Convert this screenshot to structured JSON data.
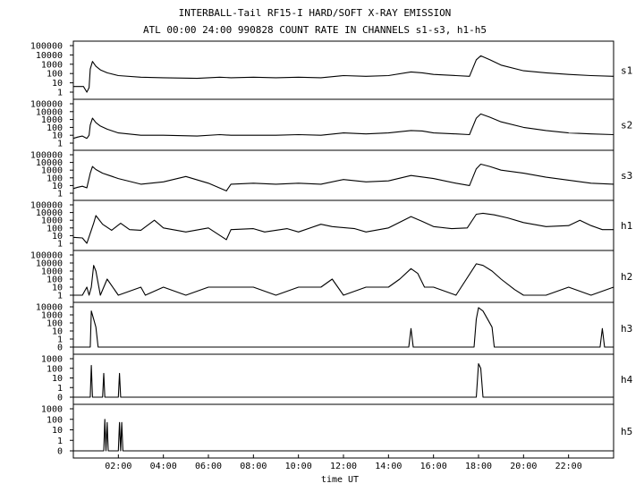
{
  "chart_data": {
    "type": "line",
    "title": "INTERBALL-Tail RF15-I HARD/SOFT X-RAY EMISSION",
    "subtitle": "ATL 00:00 24:00 990828  COUNT RATE IN CHANNELS s1-s3, h1-h5",
    "xlabel": "time UT",
    "xlim": [
      0,
      24
    ],
    "x_ticks": [
      "02:00",
      "04:00",
      "06:00",
      "08:00",
      "10:00",
      "12:00",
      "14:00",
      "16:00",
      "18:00",
      "20:00",
      "22:00"
    ],
    "x_tick_hours": [
      2,
      4,
      6,
      8,
      10,
      12,
      14,
      16,
      18,
      20,
      22
    ],
    "y_scale": "log",
    "grid": false,
    "panels": [
      {
        "name": "s1",
        "y_ticks": [
          "100000",
          "10000",
          "1000",
          "100",
          "10",
          "1"
        ],
        "x": [
          0,
          0.2,
          0.45,
          0.6,
          0.7,
          0.75,
          0.85,
          1.0,
          1.2,
          1.5,
          2.0,
          3.0,
          4.0,
          5.5,
          6.5,
          7.0,
          8.0,
          9.0,
          10.0,
          11.0,
          12.0,
          13.0,
          14.0,
          15.0,
          15.5,
          16.0,
          17.0,
          17.6,
          17.9,
          18.1,
          18.5,
          19.0,
          20.0,
          21.0,
          22.0,
          23.0,
          24.0
        ],
        "y": [
          4,
          4,
          4,
          1,
          3,
          300,
          2000,
          600,
          250,
          120,
          60,
          40,
          35,
          30,
          40,
          35,
          40,
          35,
          40,
          35,
          60,
          50,
          60,
          150,
          120,
          80,
          60,
          50,
          3000,
          8000,
          3000,
          800,
          200,
          120,
          80,
          60,
          50
        ]
      },
      {
        "name": "s2",
        "y_ticks": [
          "100000",
          "10000",
          "1000",
          "100",
          "10",
          "1"
        ],
        "x": [
          0,
          0.2,
          0.4,
          0.6,
          0.7,
          0.75,
          0.85,
          1.0,
          1.2,
          1.5,
          2.0,
          3.0,
          4.0,
          5.5,
          6.5,
          7.0,
          8.0,
          9.0,
          10.0,
          11.0,
          12.0,
          13.0,
          14.0,
          15.0,
          15.5,
          16.0,
          17.0,
          17.6,
          17.9,
          18.1,
          18.5,
          19.0,
          20.0,
          21.0,
          22.0,
          23.0,
          24.0
        ],
        "y": [
          4,
          6,
          8,
          4,
          10,
          200,
          1500,
          400,
          150,
          60,
          20,
          10,
          10,
          8,
          12,
          10,
          10,
          10,
          12,
          10,
          20,
          15,
          20,
          40,
          35,
          20,
          15,
          12,
          1500,
          5000,
          2000,
          500,
          100,
          40,
          20,
          15,
          12
        ]
      },
      {
        "name": "s3",
        "y_ticks": [
          "100000",
          "10000",
          "1000",
          "100",
          "10",
          "1"
        ],
        "x": [
          0,
          0.2,
          0.4,
          0.6,
          0.75,
          0.85,
          1.0,
          1.3,
          1.6,
          2.0,
          3.0,
          4.0,
          5.0,
          6.0,
          6.8,
          7.0,
          8.0,
          9.0,
          10.0,
          11.0,
          12.0,
          13.0,
          14.0,
          15.0,
          16.0,
          17.0,
          17.6,
          17.9,
          18.1,
          18.5,
          19.0,
          20.0,
          21.0,
          22.0,
          23.0,
          24.0
        ],
        "y": [
          4,
          6,
          8,
          5,
          400,
          3000,
          1200,
          400,
          200,
          80,
          15,
          30,
          150,
          20,
          2,
          15,
          20,
          15,
          20,
          15,
          60,
          30,
          40,
          200,
          80,
          20,
          10,
          1500,
          6000,
          3000,
          1000,
          400,
          120,
          50,
          20,
          15
        ]
      },
      {
        "name": "h1",
        "y_ticks": [
          "100000",
          "10000",
          "1000",
          "100",
          "10",
          "1"
        ],
        "x": [
          0,
          0.4,
          0.6,
          0.75,
          0.9,
          1.0,
          1.3,
          1.7,
          2.1,
          2.5,
          3.0,
          3.6,
          4.0,
          5.0,
          6.0,
          6.8,
          7.0,
          8.0,
          8.5,
          9.5,
          10.0,
          11.0,
          11.5,
          12.5,
          13.0,
          14.0,
          15.0,
          15.5,
          16.0,
          16.8,
          17.5,
          17.9,
          18.2,
          18.7,
          19.3,
          20.0,
          21.0,
          22.0,
          22.5,
          23.0,
          23.5,
          24.0
        ],
        "y": [
          6,
          5,
          1,
          20,
          400,
          4000,
          300,
          50,
          400,
          60,
          50,
          1000,
          100,
          30,
          100,
          3,
          60,
          80,
          30,
          80,
          30,
          300,
          150,
          80,
          30,
          100,
          3000,
          700,
          150,
          80,
          100,
          6000,
          8000,
          5000,
          2000,
          500,
          150,
          200,
          1000,
          200,
          60,
          60
        ]
      },
      {
        "name": "h2",
        "y_ticks": [
          "100000",
          "10000",
          "1000",
          "100",
          "10",
          "1"
        ],
        "x": [
          0,
          0.4,
          0.6,
          0.7,
          0.8,
          0.9,
          1.0,
          1.2,
          1.5,
          2.0,
          3.0,
          3.2,
          4.0,
          5.0,
          6.0,
          7.0,
          8.0,
          9.0,
          10.0,
          11.0,
          11.5,
          12.0,
          13.0,
          14.0,
          14.5,
          15.0,
          15.3,
          15.6,
          16.0,
          17.0,
          17.9,
          18.2,
          18.6,
          19.0,
          19.6,
          20.0,
          21.0,
          22.0,
          23.0,
          24.0
        ],
        "y": [
          1,
          1,
          10,
          1,
          10,
          5000,
          1000,
          1,
          100,
          1,
          10,
          1,
          10,
          1,
          10,
          10,
          10,
          1,
          10,
          10,
          100,
          1,
          10,
          10,
          100,
          2000,
          500,
          10,
          10,
          1,
          8000,
          5000,
          1000,
          100,
          5,
          1,
          1,
          10,
          1,
          10
        ]
      },
      {
        "name": "h3",
        "y_ticks": [
          "10000",
          "1000",
          "100",
          "10",
          "1",
          "0"
        ],
        "x": [
          0,
          0.6,
          0.75,
          0.8,
          0.9,
          1.0,
          1.1,
          1.2,
          14.9,
          15.0,
          15.1,
          17.8,
          17.9,
          18.0,
          18.2,
          18.4,
          18.6,
          18.7,
          23.4,
          23.5,
          23.6,
          24.0
        ],
        "y": [
          0,
          0,
          0,
          3000,
          300,
          30,
          0,
          0,
          0,
          20,
          0,
          0,
          300,
          8000,
          3000,
          300,
          30,
          0,
          0,
          20,
          0,
          0
        ]
      },
      {
        "name": "h4",
        "y_ticks": [
          "1000",
          "100",
          "10",
          "1",
          "0"
        ],
        "x": [
          0,
          0.75,
          0.8,
          0.85,
          1.3,
          1.35,
          1.4,
          2.0,
          2.05,
          2.1,
          17.9,
          18.0,
          18.1,
          18.2,
          24.0
        ],
        "y": [
          0,
          0,
          200,
          0,
          0,
          30,
          0,
          0,
          30,
          0,
          0,
          300,
          100,
          0,
          0
        ]
      },
      {
        "name": "h5",
        "y_ticks": [
          "1000",
          "100",
          "10",
          "1",
          "0"
        ],
        "x": [
          0,
          1.35,
          1.4,
          1.45,
          1.5,
          1.55,
          2.0,
          2.05,
          2.1,
          2.15,
          2.2,
          24.0
        ],
        "y": [
          0,
          0,
          100,
          0,
          50,
          0,
          0,
          50,
          0,
          50,
          0,
          0
        ]
      }
    ]
  }
}
